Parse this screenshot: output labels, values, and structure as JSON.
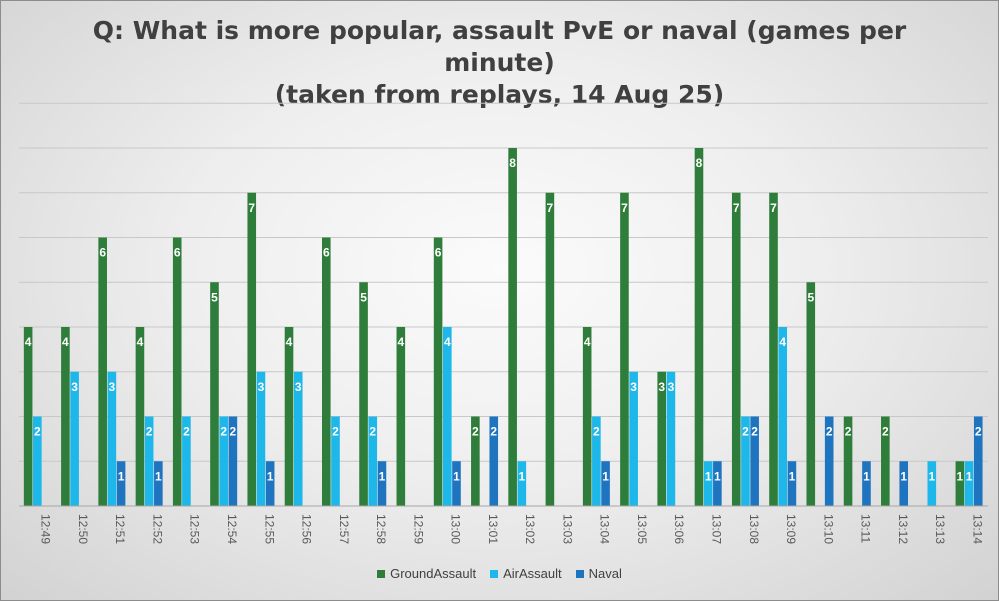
{
  "chart_data": {
    "type": "bar",
    "title": "Q: What is more popular, assault PvE or naval (games per minute)",
    "title_lines": [
      "Q: What is more popular, assault PvE or naval (games per",
      "minute)",
      "(taken from replays, 14 Aug 25)"
    ],
    "subtitle": "(taken from replays, 14 Aug 25)",
    "xlabel": "",
    "ylabel": "",
    "ylim": [
      0,
      8
    ],
    "grid": true,
    "legend_position": "bottom",
    "categories": [
      "12:49",
      "12:50",
      "12:51",
      "12:52",
      "12:53",
      "12:54",
      "12:55",
      "12:56",
      "12:57",
      "12:58",
      "12:59",
      "13:00",
      "13:01",
      "13:02",
      "13:03",
      "13:04",
      "13:05",
      "13:06",
      "13:07",
      "13:08",
      "13:09",
      "13:10",
      "13:11",
      "13:12",
      "13:13",
      "13:14"
    ],
    "series": [
      {
        "name": "GroundAssault",
        "color": "#2e7d3a",
        "values": [
          4,
          4,
          6,
          4,
          6,
          5,
          7,
          4,
          6,
          5,
          4,
          6,
          2,
          8,
          7,
          4,
          7,
          3,
          8,
          7,
          7,
          5,
          2,
          2,
          0,
          1
        ]
      },
      {
        "name": "AirAssault",
        "color": "#1db7ea",
        "values": [
          2,
          3,
          3,
          2,
          2,
          2,
          3,
          3,
          2,
          2,
          0,
          4,
          0,
          1,
          0,
          2,
          3,
          3,
          1,
          2,
          4,
          0,
          0,
          0,
          1,
          1
        ]
      },
      {
        "name": "Naval",
        "color": "#1f74c0",
        "values": [
          0,
          0,
          1,
          1,
          0,
          2,
          1,
          0,
          0,
          1,
          0,
          1,
          2,
          0,
          0,
          1,
          0,
          0,
          1,
          2,
          1,
          2,
          1,
          1,
          0,
          2
        ]
      }
    ]
  }
}
